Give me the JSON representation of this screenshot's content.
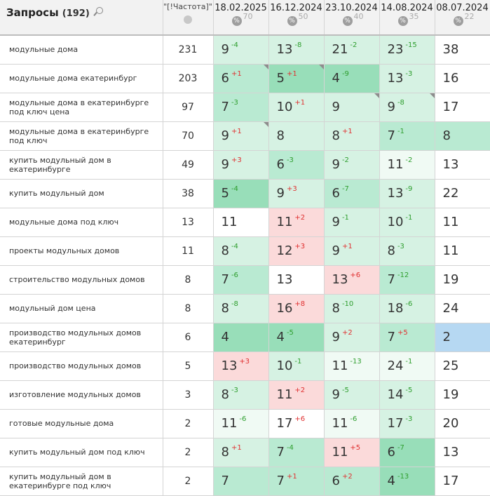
{
  "header": {
    "title": "Запросы",
    "count": "(192)",
    "freq_label": "\"[!Частота]\"",
    "dates": [
      {
        "date": "18.02.2025",
        "count": "70"
      },
      {
        "date": "16.12.2024",
        "count": "50"
      },
      {
        "date": "23.10.2024",
        "count": "40"
      },
      {
        "date": "14.08.2024",
        "count": "35"
      },
      {
        "date": "08.07.2024",
        "count": "22"
      }
    ],
    "pct_symbol": "%"
  },
  "rows": [
    {
      "query": "модульные дома",
      "freq": "231",
      "pos": [
        {
          "v": "9",
          "d": "-4",
          "dir": "up",
          "c": "c1"
        },
        {
          "v": "13",
          "d": "-8",
          "dir": "up",
          "c": "c1"
        },
        {
          "v": "21",
          "d": "-2",
          "dir": "up",
          "c": "c1"
        },
        {
          "v": "23",
          "d": "-15",
          "dir": "up",
          "c": "c1"
        },
        {
          "v": "38",
          "d": "",
          "dir": "",
          "c": "cn"
        }
      ]
    },
    {
      "query": "модульные дома екатеринбург",
      "freq": "203",
      "pos": [
        {
          "v": "6",
          "d": "+1",
          "dir": "dn",
          "c": "c2",
          "corner": true
        },
        {
          "v": "5",
          "d": "+1",
          "dir": "dn",
          "c": "c3",
          "corner": true
        },
        {
          "v": "4",
          "d": "-9",
          "dir": "up",
          "c": "c3"
        },
        {
          "v": "13",
          "d": "-3",
          "dir": "up",
          "c": "c1"
        },
        {
          "v": "16",
          "d": "",
          "dir": "",
          "c": "cn"
        }
      ]
    },
    {
      "query": "модульные дома в екатеринбурге под ключ цена",
      "freq": "97",
      "pos": [
        {
          "v": "7",
          "d": "-3",
          "dir": "up",
          "c": "c2"
        },
        {
          "v": "10",
          "d": "+1",
          "dir": "dn",
          "c": "c1"
        },
        {
          "v": "9",
          "d": "",
          "dir": "",
          "c": "c1",
          "corner": true
        },
        {
          "v": "9",
          "d": "-8",
          "dir": "up",
          "c": "c1",
          "corner": true
        },
        {
          "v": "17",
          "d": "",
          "dir": "",
          "c": "cn"
        }
      ]
    },
    {
      "query": "модульные дома в екатеринбурге под ключ",
      "freq": "70",
      "pos": [
        {
          "v": "9",
          "d": "+1",
          "dir": "dn",
          "c": "c1",
          "corner": true
        },
        {
          "v": "8",
          "d": "",
          "dir": "",
          "c": "c1"
        },
        {
          "v": "8",
          "d": "+1",
          "dir": "dn",
          "c": "c1"
        },
        {
          "v": "7",
          "d": "-1",
          "dir": "up",
          "c": "c2"
        },
        {
          "v": "8",
          "d": "",
          "dir": "",
          "c": "c2"
        }
      ]
    },
    {
      "query": "купить модульный дом в екатеринбурге",
      "freq": "49",
      "pos": [
        {
          "v": "9",
          "d": "+3",
          "dir": "dn",
          "c": "c1"
        },
        {
          "v": "6",
          "d": "-3",
          "dir": "up",
          "c": "c2"
        },
        {
          "v": "9",
          "d": "-2",
          "dir": "up",
          "c": "c1"
        },
        {
          "v": "11",
          "d": "-2",
          "dir": "up",
          "c": "cg"
        },
        {
          "v": "13",
          "d": "",
          "dir": "",
          "c": "cn"
        }
      ]
    },
    {
      "query": "купить модульный дом",
      "freq": "38",
      "pos": [
        {
          "v": "5",
          "d": "-4",
          "dir": "up",
          "c": "c3"
        },
        {
          "v": "9",
          "d": "+3",
          "dir": "dn",
          "c": "c1"
        },
        {
          "v": "6",
          "d": "-7",
          "dir": "up",
          "c": "c2"
        },
        {
          "v": "13",
          "d": "-9",
          "dir": "up",
          "c": "c1"
        },
        {
          "v": "22",
          "d": "",
          "dir": "",
          "c": "cn"
        }
      ]
    },
    {
      "query": "модульные дома под ключ",
      "freq": "13",
      "pos": [
        {
          "v": "11",
          "d": "",
          "dir": "",
          "c": "cn"
        },
        {
          "v": "11",
          "d": "+2",
          "dir": "dn",
          "c": "cr"
        },
        {
          "v": "9",
          "d": "-1",
          "dir": "up",
          "c": "c1"
        },
        {
          "v": "10",
          "d": "-1",
          "dir": "up",
          "c": "c1"
        },
        {
          "v": "11",
          "d": "",
          "dir": "",
          "c": "cn"
        }
      ]
    },
    {
      "query": "проекты модульных домов",
      "freq": "11",
      "pos": [
        {
          "v": "8",
          "d": "-4",
          "dir": "up",
          "c": "c1"
        },
        {
          "v": "12",
          "d": "+3",
          "dir": "dn",
          "c": "cr"
        },
        {
          "v": "9",
          "d": "+1",
          "dir": "dn",
          "c": "c1"
        },
        {
          "v": "8",
          "d": "-3",
          "dir": "up",
          "c": "c1"
        },
        {
          "v": "11",
          "d": "",
          "dir": "",
          "c": "cn"
        }
      ]
    },
    {
      "query": "строительство модульных домов",
      "freq": "8",
      "pos": [
        {
          "v": "7",
          "d": "-6",
          "dir": "up",
          "c": "c2"
        },
        {
          "v": "13",
          "d": "",
          "dir": "",
          "c": "cn"
        },
        {
          "v": "13",
          "d": "+6",
          "dir": "dn",
          "c": "cr"
        },
        {
          "v": "7",
          "d": "-12",
          "dir": "up",
          "c": "c2"
        },
        {
          "v": "19",
          "d": "",
          "dir": "",
          "c": "cn"
        }
      ]
    },
    {
      "query": "модульный дом цена",
      "freq": "8",
      "pos": [
        {
          "v": "8",
          "d": "-8",
          "dir": "up",
          "c": "c1"
        },
        {
          "v": "16",
          "d": "+8",
          "dir": "dn",
          "c": "cr"
        },
        {
          "v": "8",
          "d": "-10",
          "dir": "up",
          "c": "c1"
        },
        {
          "v": "18",
          "d": "-6",
          "dir": "up",
          "c": "c1"
        },
        {
          "v": "24",
          "d": "",
          "dir": "",
          "c": "cn"
        }
      ]
    },
    {
      "query": "производство модульных домов екатеринбург",
      "freq": "6",
      "pos": [
        {
          "v": "4",
          "d": "",
          "dir": "",
          "c": "c3"
        },
        {
          "v": "4",
          "d": "-5",
          "dir": "up",
          "c": "c3"
        },
        {
          "v": "9",
          "d": "+2",
          "dir": "dn",
          "c": "c1"
        },
        {
          "v": "7",
          "d": "+5",
          "dir": "dn",
          "c": "c2"
        },
        {
          "v": "2",
          "d": "",
          "dir": "",
          "c": "cb"
        }
      ]
    },
    {
      "query": "производство модульных домов",
      "freq": "5",
      "pos": [
        {
          "v": "13",
          "d": "+3",
          "dir": "dn",
          "c": "cr"
        },
        {
          "v": "10",
          "d": "-1",
          "dir": "up",
          "c": "c1"
        },
        {
          "v": "11",
          "d": "-13",
          "dir": "up",
          "c": "cg"
        },
        {
          "v": "24",
          "d": "-1",
          "dir": "up",
          "c": "cg"
        },
        {
          "v": "25",
          "d": "",
          "dir": "",
          "c": "cn"
        }
      ]
    },
    {
      "query": "изготовление модульных домов",
      "freq": "3",
      "pos": [
        {
          "v": "8",
          "d": "-3",
          "dir": "up",
          "c": "c1"
        },
        {
          "v": "11",
          "d": "+2",
          "dir": "dn",
          "c": "cr"
        },
        {
          "v": "9",
          "d": "-5",
          "dir": "up",
          "c": "c1"
        },
        {
          "v": "14",
          "d": "-5",
          "dir": "up",
          "c": "c1"
        },
        {
          "v": "19",
          "d": "",
          "dir": "",
          "c": "cn"
        }
      ]
    },
    {
      "query": "готовые модульные дома",
      "freq": "2",
      "pos": [
        {
          "v": "11",
          "d": "-6",
          "dir": "up",
          "c": "cg"
        },
        {
          "v": "17",
          "d": "+6",
          "dir": "dn",
          "c": "cn"
        },
        {
          "v": "11",
          "d": "-6",
          "dir": "up",
          "c": "cg"
        },
        {
          "v": "17",
          "d": "-3",
          "dir": "up",
          "c": "c1"
        },
        {
          "v": "20",
          "d": "",
          "dir": "",
          "c": "cn"
        }
      ]
    },
    {
      "query": "купить модульный дом под ключ",
      "freq": "2",
      "pos": [
        {
          "v": "8",
          "d": "+1",
          "dir": "dn",
          "c": "c1"
        },
        {
          "v": "7",
          "d": "-4",
          "dir": "up",
          "c": "c2"
        },
        {
          "v": "11",
          "d": "+5",
          "dir": "dn",
          "c": "cr"
        },
        {
          "v": "6",
          "d": "-7",
          "dir": "up",
          "c": "c3"
        },
        {
          "v": "13",
          "d": "",
          "dir": "",
          "c": "cn"
        }
      ]
    },
    {
      "query": "купить модульный дом в екатеринбурге под ключ",
      "freq": "2",
      "pos": [
        {
          "v": "7",
          "d": "",
          "dir": "",
          "c": "c2"
        },
        {
          "v": "7",
          "d": "+1",
          "dir": "dn",
          "c": "c2"
        },
        {
          "v": "6",
          "d": "+2",
          "dir": "dn",
          "c": "c2"
        },
        {
          "v": "4",
          "d": "-13",
          "dir": "up",
          "c": "c3"
        },
        {
          "v": "17",
          "d": "",
          "dir": "",
          "c": "cn"
        }
      ]
    }
  ]
}
